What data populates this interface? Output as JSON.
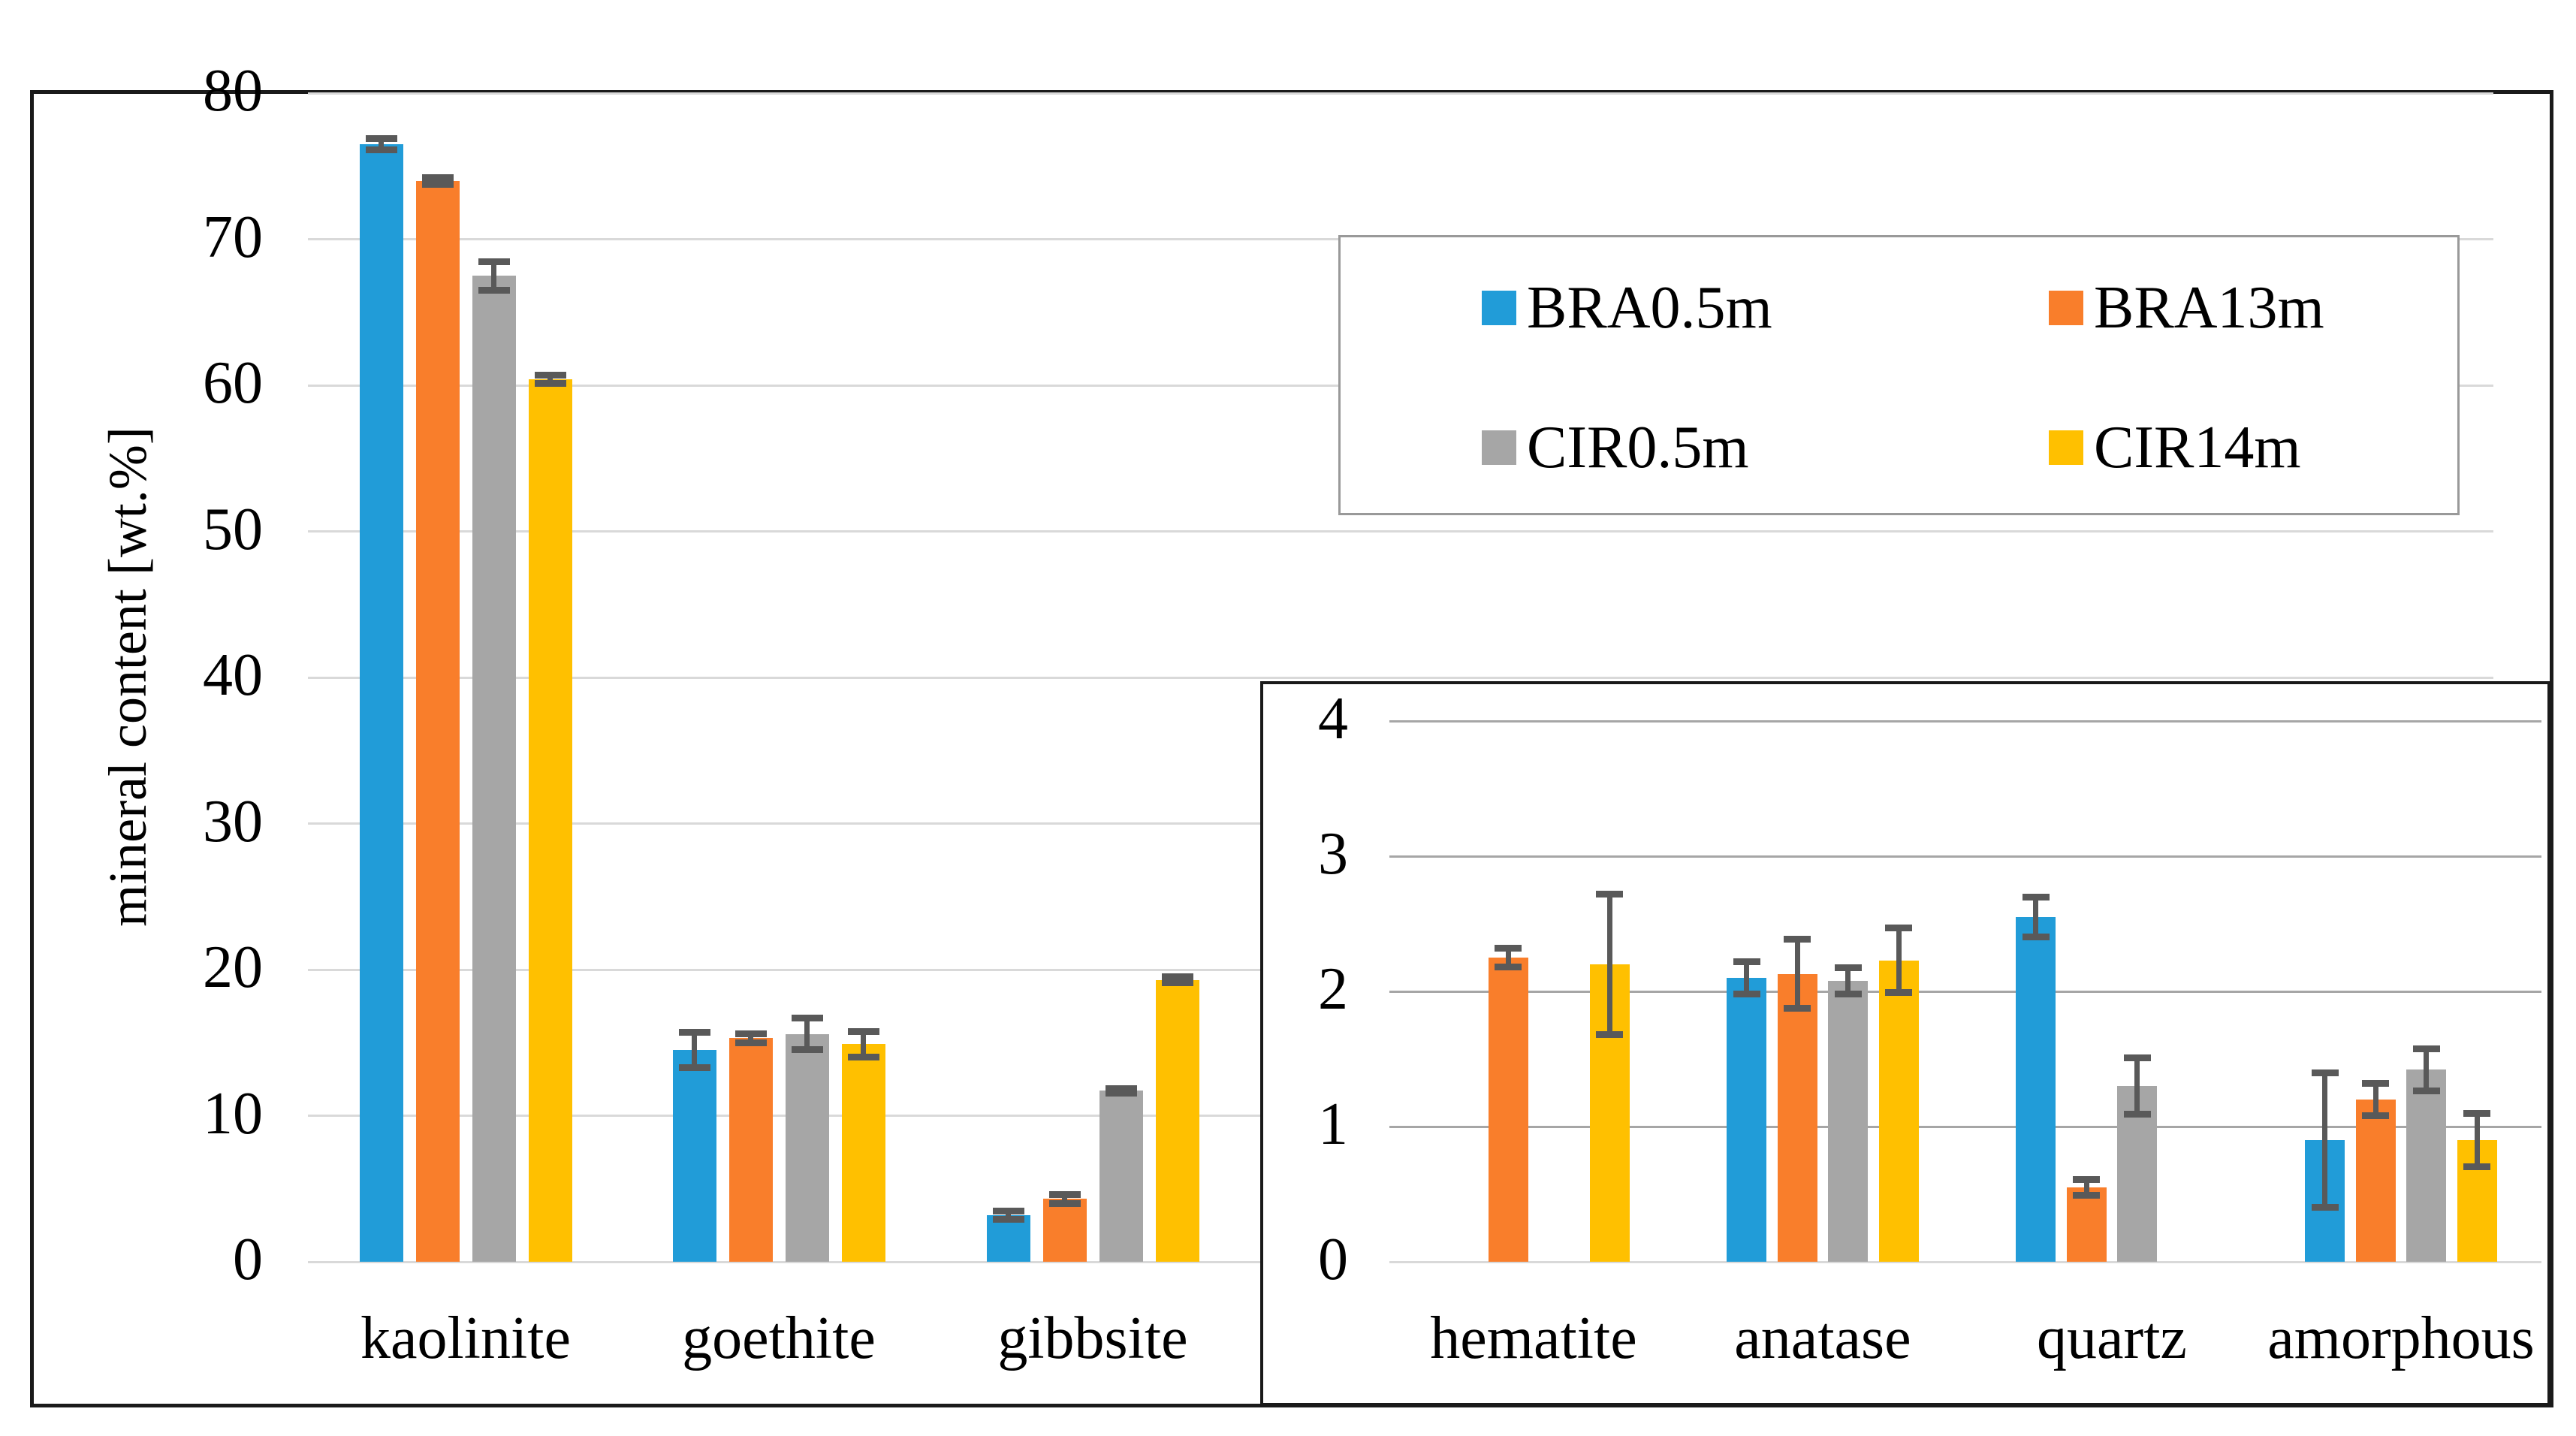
{
  "figure": {
    "description": "Bar chart of mineral content with error bars and a zoomed inset for minor phases",
    "background": "#ffffff",
    "frame_color": "#1a1a1a"
  },
  "colors": {
    "blue": "#219CD8",
    "orange": "#F97E2B",
    "gray": "#A6A6A6",
    "yellow": "#FFC000",
    "error_bar": "#595959",
    "grid_main": "#D9D9D9",
    "grid_inset": "#A6A6A6",
    "legend_border": "#999999"
  },
  "legend": {
    "items": [
      {
        "label": "BRA0.5m",
        "color": "#219CD8"
      },
      {
        "label": "BRA13m",
        "color": "#F97E2B"
      },
      {
        "label": "CIR0.5m",
        "color": "#A6A6A6"
      },
      {
        "label": "CIR14m",
        "color": "#FFC000"
      }
    ]
  },
  "chart_data": [
    {
      "type": "bar",
      "title": "",
      "xlabel": "",
      "ylabel": "mineral content [wt.%]",
      "ylim": [
        0,
        80
      ],
      "yticks": [
        0,
        10,
        20,
        30,
        40,
        50,
        60,
        70,
        80
      ],
      "grid": "horizontal",
      "legend_position": "top-right-box",
      "categories": [
        "kaolinite",
        "goethite",
        "gibbsite"
      ],
      "series": [
        {
          "name": "BRA0.5m",
          "color": "#219CD8",
          "values": [
            76.5,
            14.5,
            3.2
          ],
          "errors": [
            0.4,
            1.25,
            0.3
          ]
        },
        {
          "name": "BRA13m",
          "color": "#F97E2B",
          "values": [
            74.0,
            15.3,
            4.3
          ],
          "errors": [
            0.25,
            0.35,
            0.35
          ]
        },
        {
          "name": "CIR0.5m",
          "color": "#A6A6A6",
          "values": [
            67.5,
            15.6,
            11.7
          ],
          "errors": [
            1.0,
            1.1,
            0.2
          ]
        },
        {
          "name": "CIR14m",
          "color": "#FFC000",
          "values": [
            60.4,
            14.9,
            19.3
          ],
          "errors": [
            0.3,
            0.9,
            0.25
          ]
        }
      ]
    },
    {
      "type": "bar",
      "title": "",
      "xlabel": "",
      "ylabel": "",
      "ylim": [
        0,
        4
      ],
      "yticks": [
        0,
        1,
        2,
        3,
        4
      ],
      "grid": "horizontal",
      "legend_position": "none",
      "categories": [
        "hematite",
        "anatase",
        "quartz",
        "amorphous"
      ],
      "series": [
        {
          "name": "BRA0.5m",
          "color": "#219CD8",
          "values": [
            null,
            2.1,
            2.55,
            0.9
          ],
          "errors": [
            null,
            0.12,
            0.15,
            0.5
          ]
        },
        {
          "name": "BRA13m",
          "color": "#F97E2B",
          "values": [
            2.25,
            2.13,
            0.55,
            1.2
          ],
          "errors": [
            0.07,
            0.26,
            0.06,
            0.12
          ]
        },
        {
          "name": "CIR0.5m",
          "color": "#A6A6A6",
          "values": [
            null,
            2.08,
            1.3,
            1.42
          ],
          "errors": [
            null,
            0.1,
            0.21,
            0.16
          ]
        },
        {
          "name": "CIR14m",
          "color": "#FFC000",
          "values": [
            2.2,
            2.23,
            null,
            0.9
          ],
          "errors": [
            0.52,
            0.24,
            null,
            0.2
          ]
        }
      ]
    }
  ]
}
